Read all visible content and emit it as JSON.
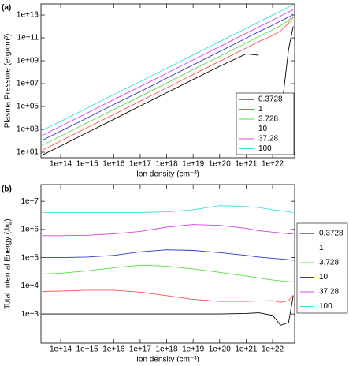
{
  "chart_data": [
    {
      "type": "line",
      "panel_label": "(a)",
      "x_label": "Ion density (cm⁻³)",
      "y_label": "Plasma Pressure (erg/cm³)",
      "log_x": true,
      "log_y": true,
      "legend": "lower right",
      "xlim": [
        18000000000000.0,
        6.8e+22
      ],
      "ylim": [
        3.3,
        93000000000000.0
      ],
      "xticks": [
        {
          "value": 100000000000000.0,
          "label": "1e+14"
        },
        {
          "value": 1000000000000000.0,
          "label": "1e+15"
        },
        {
          "value": 1e+16,
          "label": "1e+16"
        },
        {
          "value": 1e+17,
          "label": "1e+17"
        },
        {
          "value": 1e+18,
          "label": "1e+18"
        },
        {
          "value": 1e+19,
          "label": "1e+19"
        },
        {
          "value": 1e+20,
          "label": "1e+20"
        },
        {
          "value": 1e+21,
          "label": "1e+21"
        },
        {
          "value": 1e+22,
          "label": "1e+22"
        }
      ],
      "yticks": [
        {
          "value": 10,
          "label": "1e+01"
        },
        {
          "value": 1000,
          "label": "1e+03"
        },
        {
          "value": 100000,
          "label": "1e+05"
        },
        {
          "value": 10000000.0,
          "label": "1e+07"
        },
        {
          "value": 1000000000.0,
          "label": "1e+09"
        },
        {
          "value": 100000000000.0,
          "label": "1e+11"
        },
        {
          "value": 10000000000000.0,
          "label": "1e+13"
        }
      ],
      "x": [
        20000000000000.0,
        100000000000000.0,
        1000000000000000.0,
        1e+16,
        1e+17,
        1e+18,
        1e+19,
        1e+20,
        1e+21,
        3e+21,
        1e+22,
        2e+22,
        4e+22,
        6e+22
      ],
      "series": [
        {
          "name": "0.3728",
          "color": "#000000",
          "values": [
            5.6,
            36,
            520,
            7600,
            110000,
            1600000.0,
            23000000.0,
            330000000.0,
            4000000000.0,
            3000000000.0,
            null,
            10000,
            10000000000.0,
            1000000000000.0
          ]
        },
        {
          "name": "1",
          "color": "#ff5050",
          "values": [
            15,
            98,
            1400,
            20000,
            290000,
            4200000.0,
            62000000.0,
            900000000.0,
            13000000000.0,
            47000000000.0,
            160000000000.0,
            400000000000.0,
            2000000000000.0,
            6000000000000.0
          ]
        },
        {
          "name": "3.728",
          "color": "#55dd44",
          "values": [
            41,
            260,
            3800,
            55000,
            760000,
            11000000.0,
            170000000.0,
            2400000000.0,
            35000000000.0,
            130000000000.0,
            500000000000.0,
            1200000000000.0,
            3500000000000.0,
            8000000000000.0
          ]
        },
        {
          "name": "10",
          "color": "#3333cc",
          "values": [
            110,
            700,
            10000,
            150000,
            2000000.0,
            30000000.0,
            440000000.0,
            6400000000.0,
            93000000000.0,
            340000000000.0,
            1300000000000.0,
            3000000000000.0,
            6600000000000.0,
            12000000000000.0
          ]
        },
        {
          "name": "37.28",
          "color": "#e040e0",
          "values": [
            300,
            1900,
            27000,
            400000,
            5500000.0,
            80000000.0,
            1200000000.0,
            17000000000.0,
            250000000000.0,
            900000000000.0,
            3600000000000.0,
            8000000000000.0,
            18000000000000.0,
            29000000000000.0
          ]
        },
        {
          "name": "100",
          "color": "#33e0e0",
          "values": [
            800,
            5100,
            74000,
            1100000.0,
            15000000.0,
            220000000.0,
            3200000000.0,
            47000000000.0,
            680000000000.0,
            2500000000000.0,
            9800000000000.0,
            22000000000000.0,
            49000000000000.0,
            79000000000000.0
          ]
        }
      ]
    },
    {
      "type": "line",
      "panel_label": "(b)",
      "x_label": "Ion density (cm⁻³)",
      "y_label": "Total Internal Energy (J/g)",
      "log_x": true,
      "log_y": true,
      "legend": "outside right",
      "xlim": [
        18000000000000.0,
        6.8e+22
      ],
      "ylim": [
        93,
        39000000.0
      ],
      "xticks": [
        {
          "value": 100000000000000.0,
          "label": "1e+14"
        },
        {
          "value": 1000000000000000.0,
          "label": "1e+15"
        },
        {
          "value": 1e+16,
          "label": "1e+16"
        },
        {
          "value": 1e+17,
          "label": "1e+17"
        },
        {
          "value": 1e+18,
          "label": "1e+18"
        },
        {
          "value": 1e+19,
          "label": "1e+19"
        },
        {
          "value": 1e+20,
          "label": "1e+20"
        },
        {
          "value": 1e+21,
          "label": "1e+21"
        },
        {
          "value": 1e+22,
          "label": "1e+22"
        }
      ],
      "yticks": [
        {
          "value": 1000,
          "label": "1e+3"
        },
        {
          "value": 10000,
          "label": "1e+4"
        },
        {
          "value": 100000,
          "label": "1e+5"
        },
        {
          "value": 1000000.0,
          "label": "1e+6"
        },
        {
          "value": 10000000.0,
          "label": "1e+7"
        }
      ],
      "x": [
        20000000000000.0,
        100000000000000.0,
        1000000000000000.0,
        1e+16,
        1e+17,
        1e+18,
        1e+19,
        1e+20,
        1e+21,
        3e+21,
        1e+22,
        2e+22,
        4e+22,
        6e+22
      ],
      "series": [
        {
          "name": "0.3728",
          "color": "#000000",
          "values": [
            1000,
            1000,
            1000,
            1000,
            1000,
            1000,
            1000,
            1000,
            1050,
            1100,
            900,
            400,
            500,
            4400
          ]
        },
        {
          "name": "1",
          "color": "#ff5050",
          "values": [
            6300,
            6500,
            7000,
            7000,
            6000,
            4500,
            3300,
            2800,
            2800,
            2900,
            3000,
            2600,
            3000,
            4700
          ]
        },
        {
          "name": "3.728",
          "color": "#55dd44",
          "values": [
            26000,
            28000,
            34000,
            44000,
            54000,
            50000,
            40000,
            30000,
            22000,
            19000,
            16000,
            15000,
            14000,
            14000
          ]
        },
        {
          "name": "10",
          "color": "#3333cc",
          "values": [
            100000,
            100000,
            105000,
            120000,
            160000,
            190000,
            180000,
            150000,
            120000,
            105000,
            95000,
            90000,
            85000,
            80000
          ]
        },
        {
          "name": "37.28",
          "color": "#e040e0",
          "values": [
            600000,
            600000,
            620000,
            700000,
            850000,
            1200000.0,
            1500000.0,
            1400000.0,
            1100000.0,
            900000,
            800000,
            750000,
            700000,
            700000
          ]
        },
        {
          "name": "100",
          "color": "#33e0e0",
          "values": [
            4000000.0,
            4000000.0,
            4000000.0,
            4000000.0,
            4000000.0,
            4200000.0,
            5000000.0,
            7000000.0,
            6500000.0,
            6000000.0,
            5000000.0,
            4600000.0,
            4200000.0,
            4000000.0
          ]
        }
      ]
    }
  ]
}
